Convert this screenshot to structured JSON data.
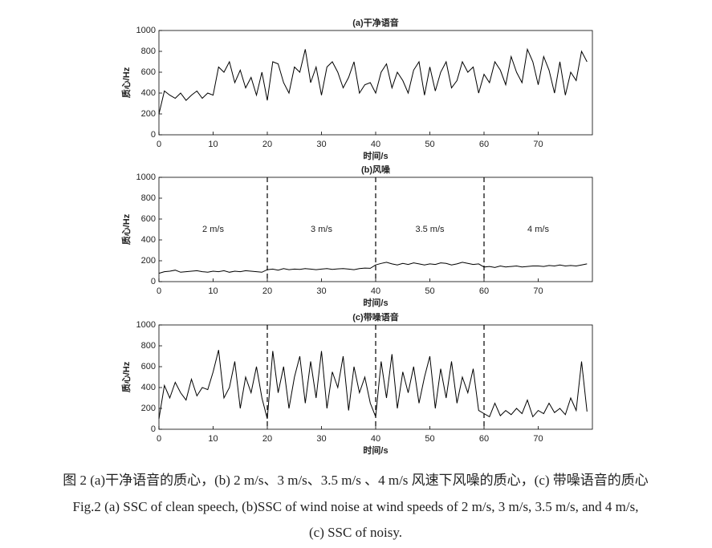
{
  "chart_data": [
    {
      "type": "line",
      "title": "(a)干净语音",
      "xlabel": "时间/s",
      "ylabel": "质心/Hz",
      "color": "#000000",
      "x": [
        0,
        1,
        2,
        3,
        4,
        5,
        6,
        7,
        8,
        9,
        10,
        11,
        12,
        13,
        14,
        15,
        16,
        17,
        18,
        19,
        20,
        21,
        22,
        23,
        24,
        25,
        26,
        27,
        28,
        29,
        30,
        31,
        32,
        33,
        34,
        35,
        36,
        37,
        38,
        39,
        40,
        41,
        42,
        43,
        44,
        45,
        46,
        47,
        48,
        49,
        50,
        51,
        52,
        53,
        54,
        55,
        56,
        57,
        58,
        59,
        60,
        61,
        62,
        63,
        64,
        65,
        66,
        67,
        68,
        69,
        70,
        71,
        72,
        73,
        74,
        75,
        76,
        77,
        78,
        79
      ],
      "values": [
        200,
        420,
        380,
        350,
        400,
        330,
        380,
        420,
        350,
        400,
        380,
        650,
        600,
        700,
        500,
        620,
        450,
        550,
        380,
        600,
        330,
        700,
        680,
        500,
        400,
        650,
        600,
        820,
        500,
        650,
        380,
        650,
        700,
        600,
        450,
        550,
        700,
        400,
        480,
        500,
        400,
        600,
        680,
        450,
        600,
        520,
        400,
        620,
        700,
        380,
        650,
        420,
        600,
        700,
        450,
        520,
        700,
        600,
        650,
        400,
        580,
        500,
        700,
        620,
        480,
        750,
        600,
        500,
        820,
        700,
        480,
        750,
        620,
        400,
        700,
        380,
        600,
        520,
        800,
        700
      ],
      "xlim": [
        0,
        80
      ],
      "ylim": [
        0,
        1000
      ],
      "xticks": [
        0,
        10,
        20,
        30,
        40,
        50,
        60,
        70
      ],
      "yticks": [
        0,
        200,
        400,
        600,
        800,
        1000
      ]
    },
    {
      "type": "line",
      "title": "(b)风噪",
      "xlabel": "时间/s",
      "ylabel": "质心/Hz",
      "color": "#000000",
      "x": [
        0,
        1,
        2,
        3,
        4,
        5,
        6,
        7,
        8,
        9,
        10,
        11,
        12,
        13,
        14,
        15,
        16,
        17,
        18,
        19,
        20,
        21,
        22,
        23,
        24,
        25,
        26,
        27,
        28,
        29,
        30,
        31,
        32,
        33,
        34,
        35,
        36,
        37,
        38,
        39,
        40,
        41,
        42,
        43,
        44,
        45,
        46,
        47,
        48,
        49,
        50,
        51,
        52,
        53,
        54,
        55,
        56,
        57,
        58,
        59,
        60,
        61,
        62,
        63,
        64,
        65,
        66,
        67,
        68,
        69,
        70,
        71,
        72,
        73,
        74,
        75,
        76,
        77,
        78,
        79
      ],
      "values": [
        80,
        95,
        100,
        110,
        90,
        95,
        100,
        105,
        95,
        90,
        100,
        95,
        105,
        90,
        100,
        95,
        105,
        100,
        95,
        90,
        115,
        120,
        110,
        125,
        115,
        120,
        118,
        125,
        120,
        115,
        120,
        125,
        118,
        122,
        125,
        120,
        115,
        125,
        130,
        128,
        160,
        175,
        185,
        170,
        160,
        175,
        165,
        180,
        170,
        160,
        170,
        165,
        180,
        175,
        160,
        170,
        185,
        175,
        165,
        170,
        140,
        145,
        135,
        150,
        140,
        145,
        150,
        140,
        145,
        150,
        150,
        145,
        155,
        150,
        160,
        150,
        155,
        150,
        160,
        170
      ],
      "xlim": [
        0,
        80
      ],
      "ylim": [
        0,
        1000
      ],
      "xticks": [
        0,
        10,
        20,
        30,
        40,
        50,
        60,
        70
      ],
      "yticks": [
        0,
        200,
        400,
        600,
        800,
        1000
      ],
      "vlines": [
        20,
        40,
        60
      ],
      "annotations": [
        "2 m/s",
        "3 m/s",
        "3.5 m/s",
        "4 m/s"
      ]
    },
    {
      "type": "line",
      "title": "(c)带噪语音",
      "xlabel": "时间/s",
      "ylabel": "质心/Hz",
      "color": "#000000",
      "x": [
        0,
        1,
        2,
        3,
        4,
        5,
        6,
        7,
        8,
        9,
        10,
        11,
        12,
        13,
        14,
        15,
        16,
        17,
        18,
        19,
        20,
        21,
        22,
        23,
        24,
        25,
        26,
        27,
        28,
        29,
        30,
        31,
        32,
        33,
        34,
        35,
        36,
        37,
        38,
        39,
        40,
        41,
        42,
        43,
        44,
        45,
        46,
        47,
        48,
        49,
        50,
        51,
        52,
        53,
        54,
        55,
        56,
        57,
        58,
        59,
        60,
        61,
        62,
        63,
        64,
        65,
        66,
        67,
        68,
        69,
        70,
        71,
        72,
        73,
        74,
        75,
        76,
        77,
        78,
        79
      ],
      "values": [
        100,
        420,
        300,
        450,
        350,
        280,
        480,
        320,
        400,
        380,
        550,
        760,
        300,
        400,
        650,
        200,
        500,
        350,
        600,
        300,
        100,
        750,
        350,
        600,
        200,
        500,
        700,
        250,
        650,
        300,
        750,
        200,
        550,
        400,
        700,
        180,
        600,
        350,
        500,
        250,
        120,
        650,
        300,
        720,
        200,
        550,
        350,
        600,
        250,
        500,
        700,
        200,
        580,
        300,
        650,
        250,
        500,
        350,
        580,
        180,
        150,
        120,
        250,
        130,
        180,
        140,
        200,
        150,
        280,
        120,
        180,
        150,
        250,
        160,
        200,
        140,
        300,
        180,
        650,
        170
      ],
      "xlim": [
        0,
        80
      ],
      "ylim": [
        0,
        1000
      ],
      "xticks": [
        0,
        10,
        20,
        30,
        40,
        50,
        60,
        70
      ],
      "yticks": [
        0,
        200,
        400,
        600,
        800,
        1000
      ],
      "vlines": [
        20,
        40,
        60
      ]
    }
  ],
  "caption": [
    "图 2 (a)干净语音的质心，(b) 2 m/s、3 m/s、3.5 m/s 、4 m/s 风速下风噪的质心，(c) 带噪语音的质心",
    "Fig.2 (a) SSC of clean speech, (b)SSC of wind noise at wind speeds of 2 m/s, 3 m/s, 3.5 m/s, and 4 m/s,",
    "(c) SSC of noisy."
  ]
}
